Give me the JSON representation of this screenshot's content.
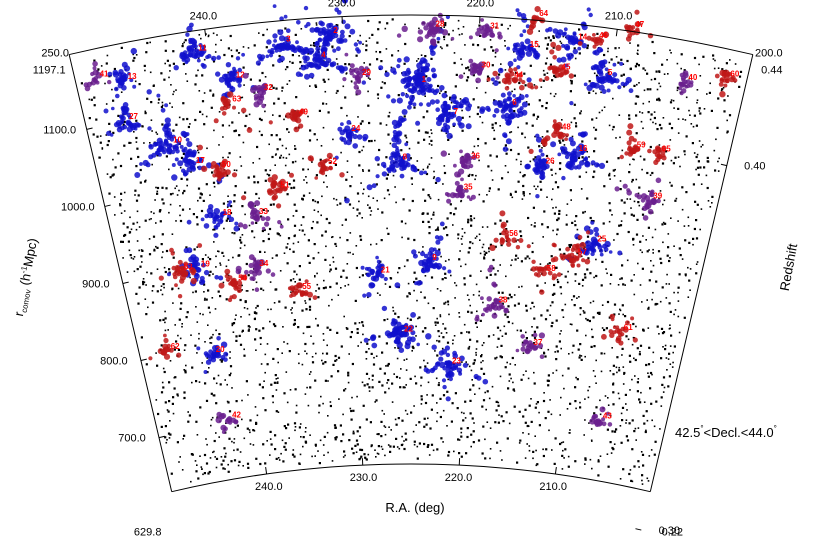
{
  "chart_data": {
    "type": "scatter",
    "title": "",
    "xlabel": "R.A. (deg)",
    "ylabel": "r_comov (h⁻¹Mpc)",
    "ylabel_parts": {
      "main": "r",
      "sub": "comov",
      "rest_a": " (h",
      "sup": "-1",
      "rest_b": "Mpc)"
    },
    "y2label": "Redshift",
    "decl_range": "42.5°<Decl.<44.0°",
    "decl_parts": {
      "a": "42.5",
      "deg1": "°",
      "b": "<Decl.<44.0",
      "deg2": "°"
    },
    "ra_range": [
      200.0,
      250.0
    ],
    "r_range": [
      629.8,
      1197.1
    ],
    "z_range": [
      0.22,
      0.44
    ],
    "ra_ticks_outer": [
      "240.0",
      "230.0",
      "220.0",
      "210.0"
    ],
    "ra_ticks_inner": [
      "240.0",
      "230.0",
      "220.0",
      "210.0"
    ],
    "ra_end_labels": {
      "left": "250.0",
      "right": "200.0"
    },
    "r_ticks": [
      "1100.0",
      "1000.0",
      "900.0",
      "800.0",
      "700.0"
    ],
    "r_end_labels": {
      "top": "1197.1",
      "bottom": "629.8"
    },
    "z_ticks": [
      "0.40",
      "0.30"
    ],
    "z_end_labels": {
      "top": "0.44",
      "bottom": "0.22"
    },
    "background_galaxies": 3200,
    "colors": {
      "blue": "#1010cc",
      "purple": "#6a1e8e",
      "red": "#c01818",
      "label": "#ff0000",
      "field": "#000000"
    },
    "clusters": [
      {
        "id": "1",
        "ra": 224.5,
        "r": 1110,
        "n": 130,
        "spread": 22,
        "color": "blue"
      },
      {
        "id": "2",
        "ra": 231.0,
        "r": 1175,
        "n": 70,
        "spread": 15,
        "color": "blue"
      },
      {
        "id": "3",
        "ra": 234.5,
        "r": 1168,
        "n": 55,
        "spread": 12,
        "color": "blue"
      },
      {
        "id": "4",
        "ra": 232.0,
        "r": 1145,
        "n": 55,
        "spread": 13,
        "color": "blue"
      },
      {
        "id": "5",
        "ra": 210.5,
        "r": 1135,
        "n": 55,
        "spread": 14,
        "color": "blue"
      },
      {
        "id": "6",
        "ra": 217.5,
        "r": 1085,
        "n": 55,
        "spread": 13,
        "color": "blue"
      },
      {
        "id": "7",
        "ra": 222.0,
        "r": 1070,
        "n": 60,
        "spread": 14,
        "color": "blue"
      },
      {
        "id": "8",
        "ra": 226.0,
        "r": 1012,
        "n": 60,
        "spread": 15,
        "color": "blue"
      },
      {
        "id": "9",
        "ra": 223.5,
        "r": 885,
        "n": 40,
        "spread": 11,
        "color": "blue"
      },
      {
        "id": "10",
        "ra": 244.0,
        "r": 1060,
        "n": 70,
        "spread": 15,
        "color": "blue"
      },
      {
        "id": "11",
        "ra": 241.0,
        "r": 1170,
        "n": 45,
        "spread": 12,
        "color": "blue"
      },
      {
        "id": "12",
        "ra": 238.5,
        "r": 1130,
        "n": 40,
        "spread": 10,
        "color": "blue"
      },
      {
        "id": "13",
        "ra": 246.5,
        "r": 1150,
        "n": 35,
        "spread": 10,
        "color": "blue"
      },
      {
        "id": "14",
        "ra": 213.0,
        "r": 1175,
        "n": 45,
        "spread": 12,
        "color": "blue"
      },
      {
        "id": "15",
        "ra": 216.5,
        "r": 1160,
        "n": 40,
        "spread": 11,
        "color": "blue"
      },
      {
        "id": "16",
        "ra": 212.0,
        "r": 1035,
        "n": 55,
        "spread": 14,
        "color": "blue"
      },
      {
        "id": "17",
        "ra": 242.5,
        "r": 1030,
        "n": 35,
        "spread": 10,
        "color": "blue"
      },
      {
        "id": "18",
        "ra": 241.0,
        "r": 960,
        "n": 30,
        "spread": 9,
        "color": "blue"
      },
      {
        "id": "19",
        "ra": 243.5,
        "r": 900,
        "n": 35,
        "spread": 10,
        "color": "blue"
      },
      {
        "id": "20",
        "ra": 243.5,
        "r": 790,
        "n": 25,
        "spread": 8,
        "color": "blue"
      },
      {
        "id": "21",
        "ra": 228.0,
        "r": 870,
        "n": 30,
        "spread": 9,
        "color": "blue"
      },
      {
        "id": "22",
        "ra": 226.0,
        "r": 795,
        "n": 55,
        "spread": 13,
        "color": "blue"
      },
      {
        "id": "23",
        "ra": 221.5,
        "r": 755,
        "n": 45,
        "spread": 12,
        "color": "blue"
      },
      {
        "id": "24",
        "ra": 230.0,
        "r": 1050,
        "n": 30,
        "spread": 9,
        "color": "blue"
      },
      {
        "id": "25",
        "ra": 209.5,
        "r": 925,
        "n": 40,
        "spread": 11,
        "color": "blue"
      },
      {
        "id": "26",
        "ra": 214.5,
        "r": 1015,
        "n": 30,
        "spread": 9,
        "color": "blue"
      },
      {
        "id": "27",
        "ra": 247.0,
        "r": 1100,
        "n": 35,
        "spread": 10,
        "color": "blue"
      },
      {
        "id": "28",
        "ra": 223.5,
        "r": 1180,
        "n": 35,
        "spread": 10,
        "color": "purple"
      },
      {
        "id": "29",
        "ra": 229.0,
        "r": 1120,
        "n": 25,
        "spread": 8,
        "color": "purple"
      },
      {
        "id": "30",
        "ra": 220.0,
        "r": 1130,
        "n": 25,
        "spread": 8,
        "color": "purple"
      },
      {
        "id": "31",
        "ra": 219.5,
        "r": 1180,
        "n": 20,
        "spread": 7,
        "color": "purple"
      },
      {
        "id": "32",
        "ra": 236.5,
        "r": 1110,
        "n": 20,
        "spread": 7,
        "color": "purple"
      },
      {
        "id": "33",
        "ra": 238.0,
        "r": 955,
        "n": 25,
        "spread": 8,
        "color": "purple"
      },
      {
        "id": "34",
        "ra": 238.5,
        "r": 890,
        "n": 25,
        "spread": 8,
        "color": "purple"
      },
      {
        "id": "35",
        "ra": 221.0,
        "r": 975,
        "n": 25,
        "spread": 8,
        "color": "purple"
      },
      {
        "id": "36",
        "ra": 220.5,
        "r": 1015,
        "n": 25,
        "spread": 8,
        "color": "purple"
      },
      {
        "id": "37",
        "ra": 214.0,
        "r": 785,
        "n": 20,
        "spread": 7,
        "color": "purple"
      },
      {
        "id": "38",
        "ra": 217.5,
        "r": 835,
        "n": 30,
        "spread": 9,
        "color": "purple"
      },
      {
        "id": "39",
        "ra": 205.5,
        "r": 990,
        "n": 30,
        "spread": 9,
        "color": "purple"
      },
      {
        "id": "40",
        "ra": 204.5,
        "r": 1145,
        "n": 20,
        "spread": 7,
        "color": "purple"
      },
      {
        "id": "41",
        "ra": 248.5,
        "r": 1160,
        "n": 15,
        "spread": 6,
        "color": "purple"
      },
      {
        "id": "42",
        "ra": 243.0,
        "r": 705,
        "n": 15,
        "spread": 6,
        "color": "purple"
      },
      {
        "id": "43",
        "ra": 206.5,
        "r": 705,
        "n": 15,
        "spread": 6,
        "color": "purple"
      },
      {
        "id": "44",
        "ra": 217.5,
        "r": 1120,
        "n": 25,
        "spread": 8,
        "color": "red"
      },
      {
        "id": "45",
        "ra": 214.0,
        "r": 1135,
        "n": 25,
        "spread": 8,
        "color": "red"
      },
      {
        "id": "46",
        "ra": 211.5,
        "r": 1180,
        "n": 15,
        "spread": 6,
        "color": "red"
      },
      {
        "id": "47",
        "ra": 209.0,
        "r": 1200,
        "n": 15,
        "spread": 6,
        "color": "red"
      },
      {
        "id": "48",
        "ra": 213.5,
        "r": 1060,
        "n": 25,
        "spread": 8,
        "color": "red"
      },
      {
        "id": "49",
        "ra": 234.0,
        "r": 1075,
        "n": 20,
        "spread": 7,
        "color": "red"
      },
      {
        "id": "50",
        "ra": 240.5,
        "r": 1020,
        "n": 25,
        "spread": 8,
        "color": "red"
      },
      {
        "id": "51",
        "ra": 236.0,
        "r": 985,
        "n": 25,
        "spread": 8,
        "color": "red"
      },
      {
        "id": "52",
        "ra": 232.0,
        "r": 1010,
        "n": 20,
        "spread": 7,
        "color": "red"
      },
      {
        "id": "53",
        "ra": 245.0,
        "r": 900,
        "n": 30,
        "spread": 9,
        "color": "red"
      },
      {
        "id": "54",
        "ra": 240.5,
        "r": 875,
        "n": 25,
        "spread": 8,
        "color": "red"
      },
      {
        "id": "55",
        "ra": 235.0,
        "r": 855,
        "n": 20,
        "spread": 7,
        "color": "red"
      },
      {
        "id": "56",
        "ra": 217.0,
        "r": 920,
        "n": 20,
        "spread": 7,
        "color": "red"
      },
      {
        "id": "57",
        "ra": 211.0,
        "r": 905,
        "n": 30,
        "spread": 9,
        "color": "red"
      },
      {
        "id": "58",
        "ra": 213.5,
        "r": 880,
        "n": 20,
        "spread": 7,
        "color": "red"
      },
      {
        "id": "59",
        "ra": 207.5,
        "r": 1050,
        "n": 20,
        "spread": 7,
        "color": "red"
      },
      {
        "id": "60",
        "ra": 201.5,
        "r": 1160,
        "n": 20,
        "spread": 7,
        "color": "red"
      },
      {
        "id": "61",
        "ra": 206.0,
        "r": 820,
        "n": 20,
        "spread": 7,
        "color": "red"
      },
      {
        "id": "62",
        "ra": 247.5,
        "r": 805,
        "n": 15,
        "spread": 6,
        "color": "red"
      },
      {
        "id": "63",
        "ra": 239.0,
        "r": 1100,
        "n": 15,
        "spread": 6,
        "color": "red"
      },
      {
        "id": "64",
        "ra": 216.0,
        "r": 1200,
        "n": 15,
        "spread": 6,
        "color": "red"
      },
      {
        "id": "65",
        "ra": 205.5,
        "r": 1050,
        "n": 15,
        "spread": 6,
        "color": "red"
      }
    ]
  }
}
